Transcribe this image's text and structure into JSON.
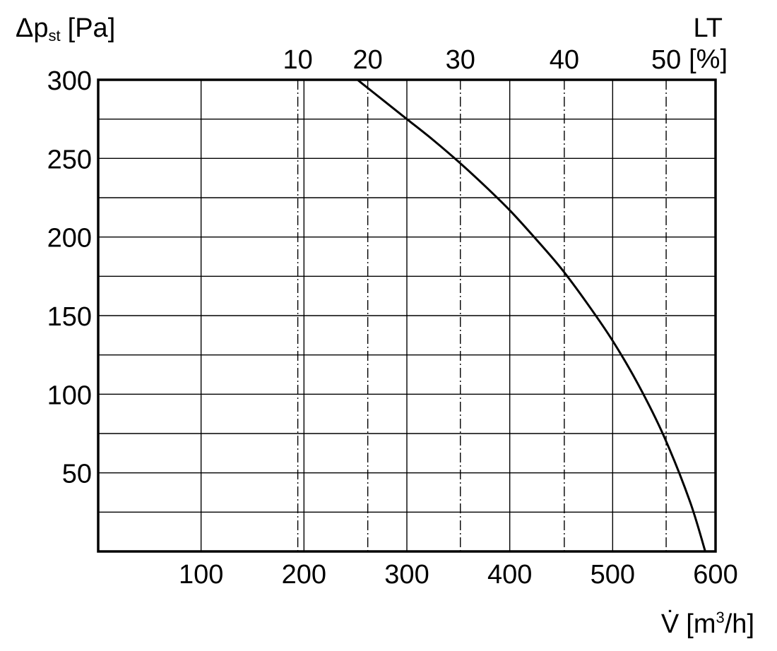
{
  "chart_data": {
    "type": "line",
    "title": "",
    "ylabel": {
      "main": "Δp",
      "sub": "st",
      "unit": "[Pa]"
    },
    "xlabel": {
      "main": "V̇",
      "unit_pre": "[m",
      "unit_sup": "3",
      "unit_post": "/h]"
    },
    "top_axis_label": {
      "name": "LT",
      "unit": "[%]"
    },
    "xlim": [
      0,
      600
    ],
    "ylim": [
      0,
      300
    ],
    "x_ticks": [
      100,
      200,
      300,
      400,
      500,
      600
    ],
    "y_ticks": [
      50,
      100,
      150,
      200,
      250,
      300
    ],
    "x_minor_gridlines": [
      100,
      200,
      300,
      400,
      500
    ],
    "y_minor_gridlines": [
      25,
      50,
      75,
      100,
      125,
      150,
      175,
      200,
      225,
      250,
      275
    ],
    "lt_lines": [
      {
        "label": "10",
        "x": 194
      },
      {
        "label": "20",
        "x": 262
      },
      {
        "label": "30",
        "x": 352
      },
      {
        "label": "40",
        "x": 453
      },
      {
        "label": "50",
        "x": 552
      }
    ],
    "grid": true,
    "legend": "none",
    "series": [
      {
        "x": [
          252,
          275,
          300,
          325,
          350,
          375,
          400,
          425,
          450,
          475,
          500,
          525,
          550,
          575,
          590
        ],
        "y": [
          300,
          288,
          275,
          262,
          248,
          233,
          217,
          199,
          180,
          158,
          134,
          106,
          73,
          32,
          0
        ]
      }
    ]
  }
}
